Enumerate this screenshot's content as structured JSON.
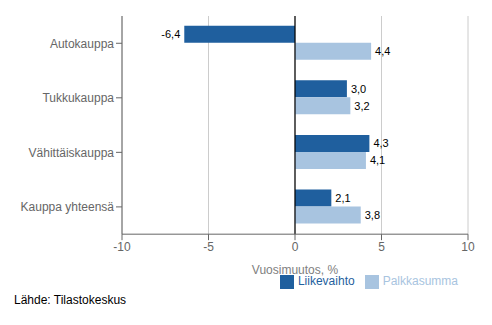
{
  "chart_data": {
    "type": "bar",
    "orientation": "horizontal",
    "categories": [
      "Kauppa yhteensä",
      "Vähittäiskauppa",
      "Tukkukauppa",
      "Autokauppa"
    ],
    "series": [
      {
        "name": "Liikevaihto",
        "color": "#1f5f9e",
        "values": [
          2.1,
          4.3,
          3.0,
          -6.4
        ],
        "value_labels": [
          "2,1",
          "4,3",
          "3,0",
          "-6,4"
        ]
      },
      {
        "name": "Palkkasumma",
        "color": "#a8c4e0",
        "values": [
          3.8,
          4.1,
          3.2,
          4.4
        ],
        "value_labels": [
          "3,8",
          "4,1",
          "3,2",
          "4,4"
        ]
      }
    ],
    "xlabel": "Vuosimuutos, %",
    "xlim": [
      -10,
      10
    ],
    "xticks": [
      -10,
      -5,
      0,
      5,
      10
    ],
    "grid": true,
    "legend": "lower right",
    "data_labels": true,
    "annotations": [
      "Lähde: Tilastokeskus"
    ]
  }
}
